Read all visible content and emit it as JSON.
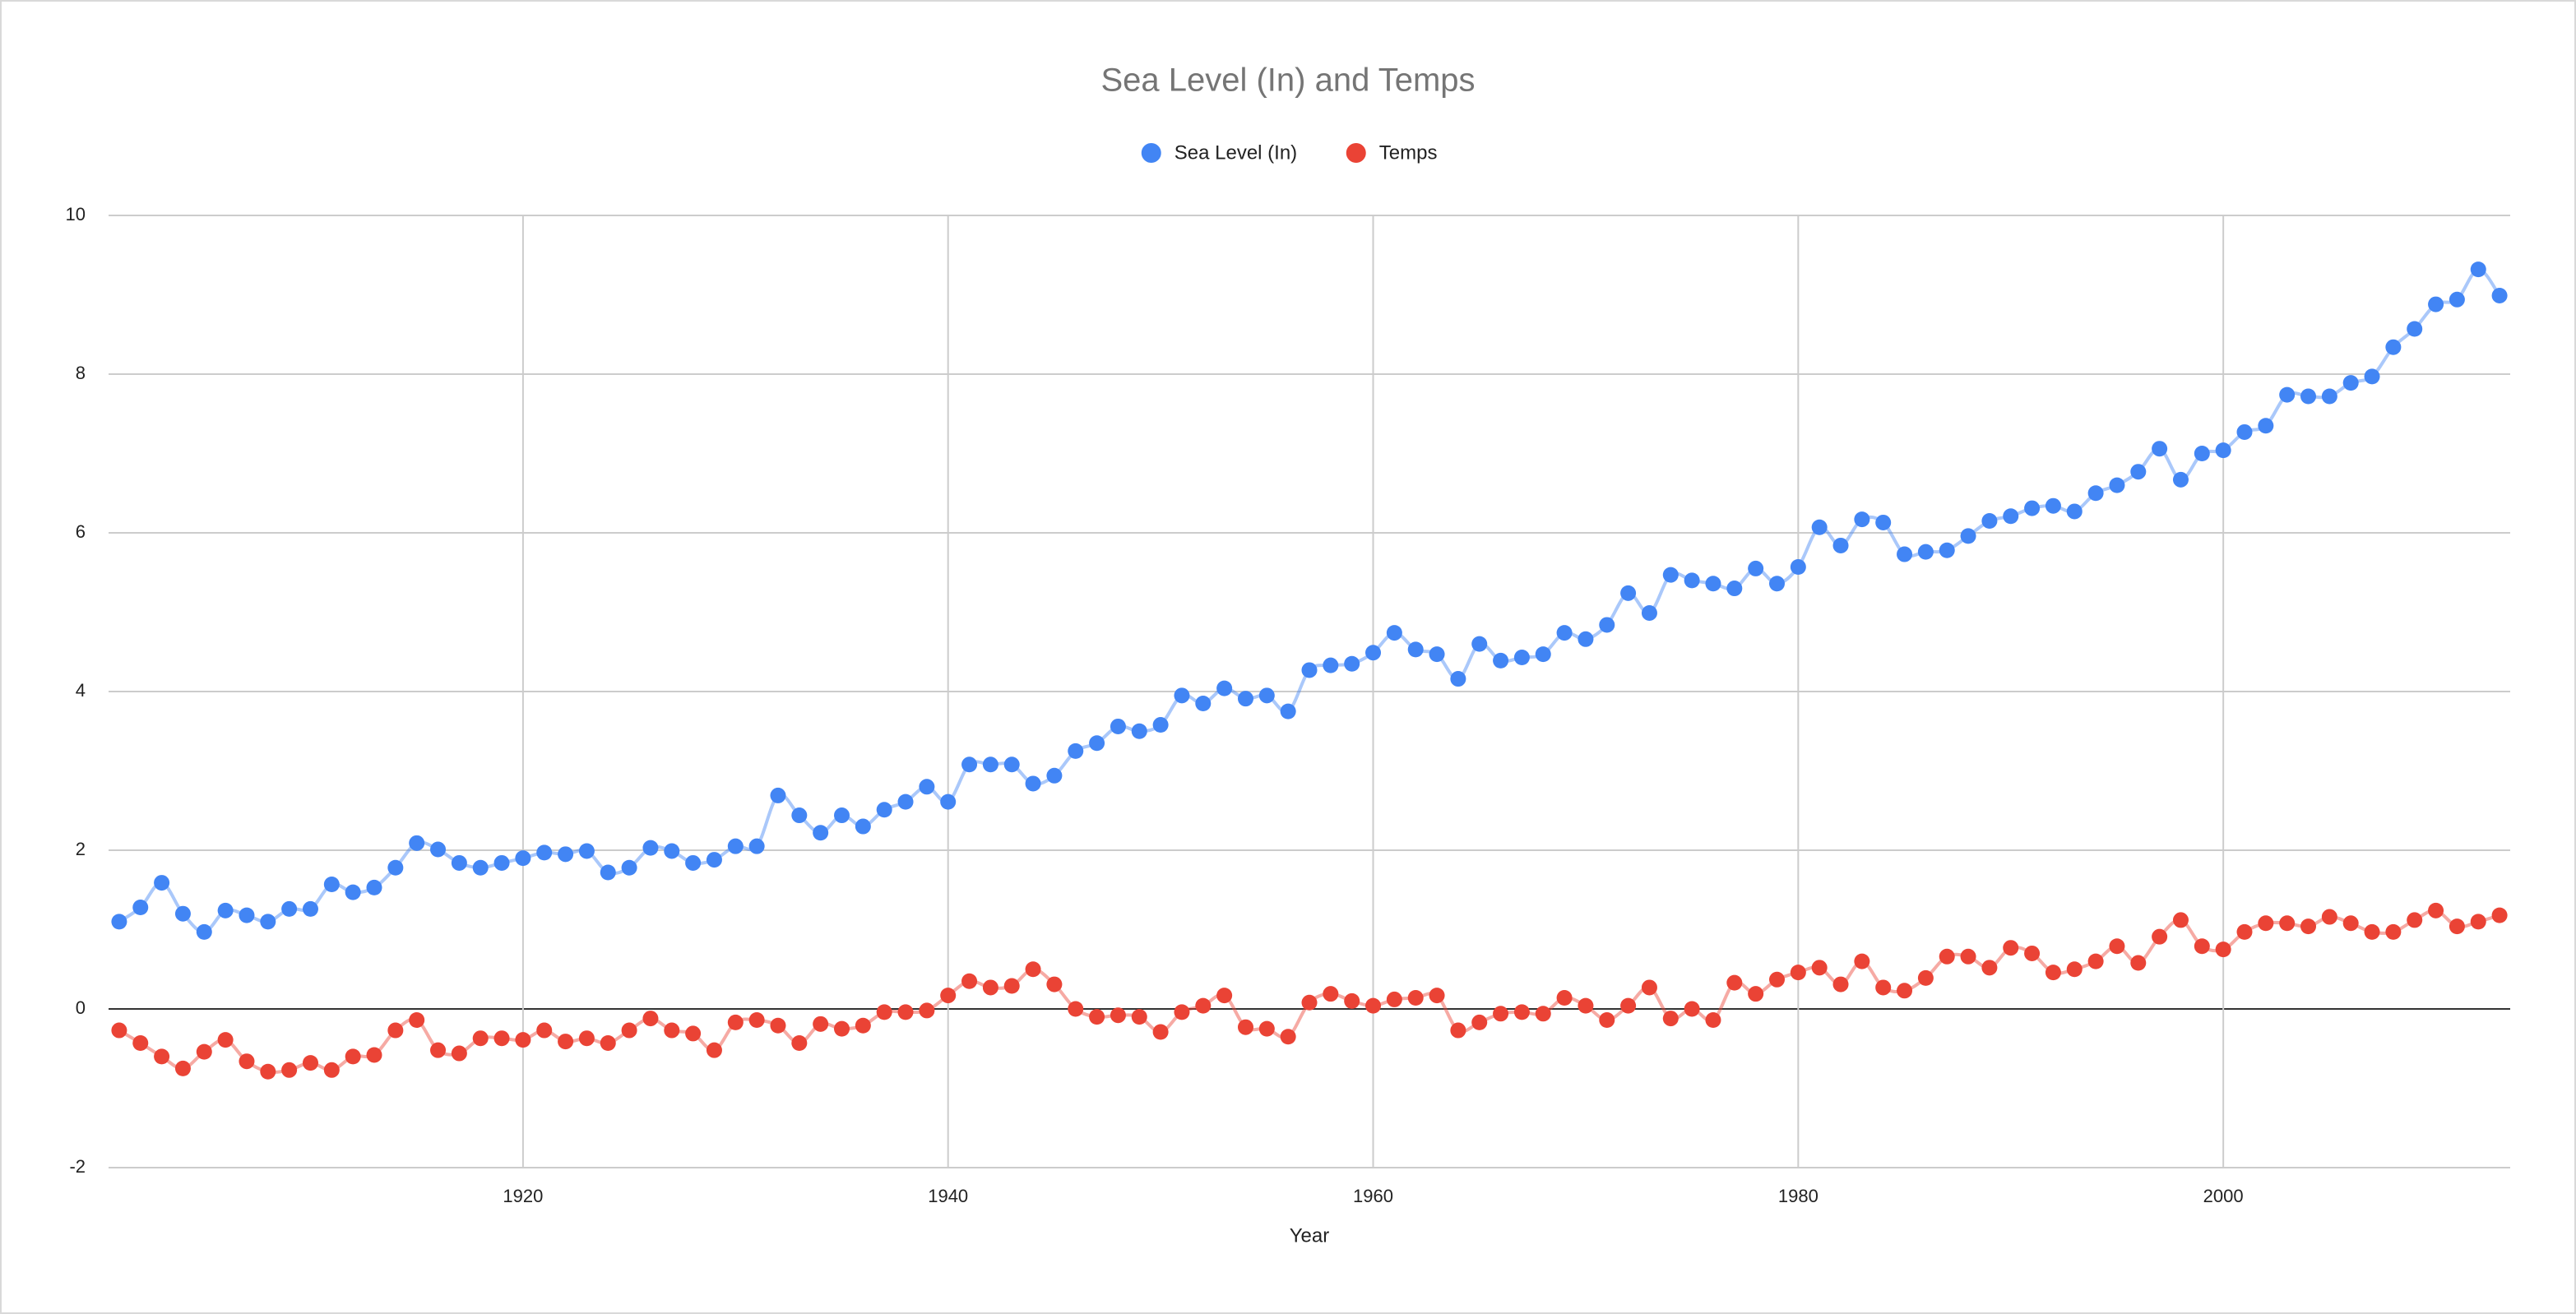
{
  "chart_data": {
    "type": "line",
    "title": "Sea Level (In) and Temps",
    "x_label": "Year",
    "x": [
      1901,
      1902,
      1903,
      1904,
      1905,
      1906,
      1907,
      1908,
      1909,
      1910,
      1911,
      1912,
      1913,
      1914,
      1915,
      1916,
      1917,
      1918,
      1919,
      1920,
      1921,
      1922,
      1923,
      1924,
      1925,
      1926,
      1927,
      1928,
      1929,
      1930,
      1931,
      1932,
      1933,
      1934,
      1935,
      1936,
      1937,
      1938,
      1939,
      1940,
      1941,
      1942,
      1943,
      1944,
      1945,
      1946,
      1947,
      1948,
      1949,
      1950,
      1951,
      1952,
      1953,
      1954,
      1955,
      1956,
      1957,
      1958,
      1959,
      1960,
      1961,
      1962,
      1963,
      1964,
      1965,
      1966,
      1967,
      1968,
      1969,
      1970,
      1971,
      1972,
      1973,
      1974,
      1975,
      1976,
      1977,
      1978,
      1979,
      1980,
      1981,
      1982,
      1983,
      1984,
      1985,
      1986,
      1987,
      1988,
      1989,
      1990,
      1991,
      1992,
      1993,
      1994,
      1995,
      1996,
      1997,
      1998,
      1999,
      2000,
      2001,
      2002,
      2003,
      2004,
      2005,
      2006,
      2007,
      2008,
      2009,
      2010,
      2011,
      2012,
      2013
    ],
    "series": [
      {
        "name": "Sea Level (In)",
        "color": "#4285f4",
        "values": [
          1.1,
          1.28,
          1.59,
          1.2,
          0.97,
          1.24,
          1.18,
          1.1,
          1.26,
          1.26,
          1.57,
          1.47,
          1.53,
          1.78,
          2.09,
          2.01,
          1.84,
          1.78,
          1.84,
          1.9,
          1.97,
          1.95,
          1.99,
          1.72,
          1.78,
          2.03,
          1.99,
          1.84,
          1.88,
          2.05,
          2.05,
          2.69,
          2.44,
          2.22,
          2.44,
          2.3,
          2.51,
          2.61,
          2.8,
          2.61,
          3.08,
          3.08,
          3.08,
          2.84,
          2.94,
          3.25,
          3.35,
          3.56,
          3.5,
          3.58,
          3.95,
          3.85,
          4.04,
          3.91,
          3.95,
          3.75,
          4.27,
          4.33,
          4.35,
          4.49,
          4.74,
          4.53,
          4.47,
          4.16,
          4.6,
          4.39,
          4.43,
          4.47,
          4.74,
          4.66,
          4.84,
          5.24,
          4.99,
          5.47,
          5.4,
          5.36,
          5.3,
          5.55,
          5.36,
          5.57,
          6.07,
          5.84,
          6.17,
          6.13,
          5.73,
          5.76,
          5.78,
          5.96,
          6.15,
          6.21,
          6.31,
          6.34,
          6.27,
          6.5,
          6.6,
          6.77,
          7.06,
          6.67,
          7.0,
          7.04,
          7.27,
          7.35,
          7.74,
          7.72,
          7.72,
          7.89,
          7.97,
          8.34,
          8.57,
          8.88,
          8.94,
          9.32,
          8.99
        ]
      },
      {
        "name": "Temps",
        "color": "#ea4335",
        "values": [
          -0.27,
          -0.43,
          -0.6,
          -0.75,
          -0.54,
          -0.39,
          -0.66,
          -0.79,
          -0.77,
          -0.68,
          -0.77,
          -0.6,
          -0.58,
          -0.27,
          -0.14,
          -0.52,
          -0.56,
          -0.37,
          -0.37,
          -0.39,
          -0.27,
          -0.41,
          -0.37,
          -0.43,
          -0.27,
          -0.12,
          -0.27,
          -0.31,
          -0.52,
          -0.17,
          -0.14,
          -0.21,
          -0.43,
          -0.19,
          -0.25,
          -0.21,
          -0.04,
          -0.04,
          -0.02,
          0.17,
          0.35,
          0.27,
          0.29,
          0.5,
          0.31,
          0.0,
          -0.1,
          -0.08,
          -0.1,
          -0.29,
          -0.04,
          0.04,
          0.17,
          -0.23,
          -0.25,
          -0.35,
          0.08,
          0.19,
          0.1,
          0.04,
          0.12,
          0.14,
          0.17,
          -0.27,
          -0.17,
          -0.06,
          -0.04,
          -0.06,
          0.14,
          0.04,
          -0.14,
          0.04,
          0.27,
          -0.12,
          0.0,
          -0.14,
          0.33,
          0.19,
          0.37,
          0.46,
          0.52,
          0.31,
          0.6,
          0.27,
          0.23,
          0.39,
          0.66,
          0.66,
          0.52,
          0.77,
          0.7,
          0.46,
          0.5,
          0.6,
          0.79,
          0.58,
          0.91,
          1.12,
          0.79,
          0.75,
          0.97,
          1.08,
          1.08,
          1.04,
          1.16,
          1.08,
          0.97,
          0.97,
          1.12,
          1.24,
          1.04,
          1.1,
          1.18
        ]
      }
    ],
    "xlim": [
      1900.5,
      2013.5
    ],
    "xticks": [
      1920,
      1940,
      1960,
      1980,
      2000
    ],
    "ylim": [
      -2,
      10
    ],
    "yticks": [
      -2,
      0,
      2,
      4,
      6,
      8,
      10
    ],
    "grid": true,
    "legend": "top"
  }
}
